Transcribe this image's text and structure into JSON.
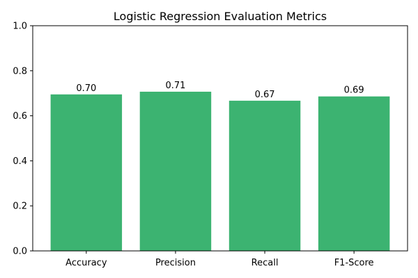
{
  "chart_data": {
    "type": "bar",
    "title": "Logistic Regression Evaluation Metrics",
    "xlabel": "",
    "ylabel": "",
    "categories": [
      "Accuracy",
      "Precision",
      "Recall",
      "F1-Score"
    ],
    "values": [
      0.695,
      0.707,
      0.667,
      0.686
    ],
    "data_labels": [
      "0.70",
      "0.71",
      "0.67",
      "0.69"
    ],
    "ylim": [
      0,
      1
    ],
    "yticks": [
      0.0,
      0.2,
      0.4,
      0.6,
      0.8,
      1.0
    ],
    "ytick_labels": [
      "0.0",
      "0.2",
      "0.4",
      "0.6",
      "0.8",
      "1.0"
    ],
    "grid": false,
    "bar_color": "#3cb371"
  }
}
